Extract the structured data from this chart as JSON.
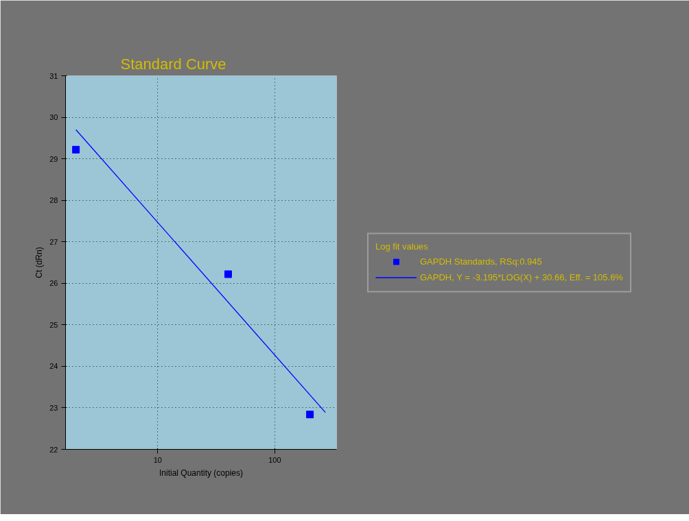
{
  "chart_data": {
    "type": "scatter",
    "title": "Standard Curve",
    "xlabel": "Initial Quantity (copies)",
    "ylabel": "Ct (dRn)",
    "legend_title": "Log fit values",
    "log": "x",
    "xlim": [
      1.63,
      338
    ],
    "xticks": [
      10,
      100
    ],
    "ylim": [
      22,
      31
    ],
    "yticks": [
      22,
      23,
      24,
      25,
      26,
      27,
      28,
      29,
      30,
      31
    ],
    "grid": true,
    "legend": "right",
    "marker": "square",
    "series": [
      {
        "name": "GAPDH Standards, RSq:0.945",
        "color": "#0000ff",
        "x": [
          2,
          40,
          200
        ],
        "values": [
          29.22,
          26.22,
          22.84
        ]
      },
      {
        "name": "GAPDH, Y = -3.195*LOG(X) + 30.66, Eff. = 105.6%",
        "type": "line",
        "marker": "none",
        "line_style": "solid",
        "color": "#0000ff",
        "x": [
          2,
          271
        ],
        "values": [
          29.7,
          22.89
        ]
      }
    ]
  }
}
